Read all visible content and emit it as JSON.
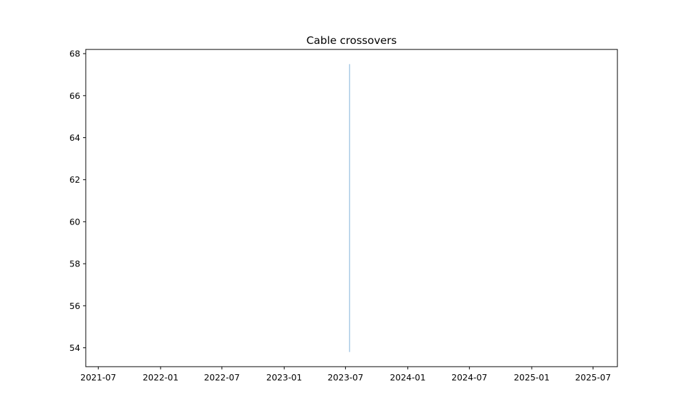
{
  "chart_data": {
    "type": "line",
    "title": "Cable crossovers",
    "xlabel": "",
    "ylabel": "",
    "x_axis": "date",
    "xlim": [
      "2021-05-25",
      "2025-09-11"
    ],
    "ylim": [
      53.1,
      68.2
    ],
    "x_ticks": [
      "2021-07-01",
      "2022-01-01",
      "2022-07-01",
      "2023-01-01",
      "2023-07-01",
      "2024-01-01",
      "2024-07-01",
      "2025-01-01",
      "2025-07-01"
    ],
    "x_tick_labels": [
      "2021-07",
      "2022-01",
      "2022-07",
      "2023-01",
      "2023-07",
      "2024-01",
      "2024-07",
      "2025-01",
      "2025-07"
    ],
    "y_ticks": [
      54,
      56,
      58,
      60,
      62,
      64,
      66,
      68
    ],
    "y_tick_labels": [
      "54",
      "56",
      "58",
      "60",
      "62",
      "64",
      "66",
      "68"
    ],
    "series": [
      {
        "color": "#a6c8e4",
        "x": [
          "2023-07-13",
          "2023-07-13"
        ],
        "values": [
          53.8,
          67.5
        ]
      }
    ],
    "grid": false,
    "legend": "none"
  }
}
